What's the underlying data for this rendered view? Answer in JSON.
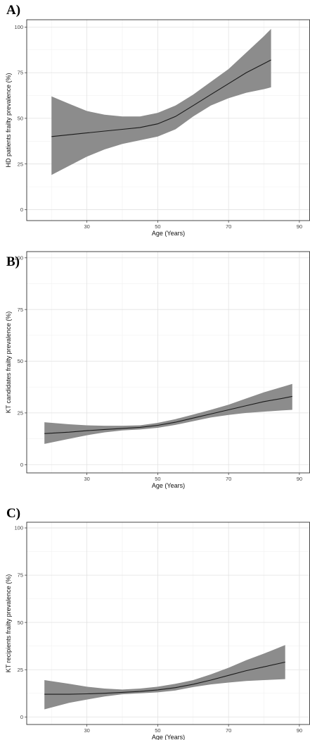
{
  "chart_data": [
    {
      "type": "line",
      "panel_label": "A)",
      "xlabel": "Age (Years)",
      "ylabel": "HD patients frailty prevalence (%)",
      "xlim": [
        13,
        93
      ],
      "ylim": [
        -6,
        104
      ],
      "x_ticks": [
        30,
        50,
        70,
        90
      ],
      "y_ticks": [
        0,
        25,
        50,
        75,
        100
      ],
      "grid": true,
      "series": [
        {
          "x": [
            20,
            25,
            30,
            35,
            40,
            45,
            50,
            55,
            60,
            65,
            70,
            75,
            80,
            82
          ],
          "y": [
            40,
            41,
            42,
            43,
            44,
            45,
            47,
            51,
            57,
            63,
            69,
            75,
            80,
            82
          ],
          "ci_lower": [
            19,
            24,
            29,
            33,
            36,
            38,
            40,
            44,
            51,
            57,
            61,
            64,
            66,
            67
          ],
          "ci_upper": [
            62,
            58,
            54,
            52,
            51,
            51,
            53,
            57,
            63,
            70,
            77,
            86,
            95,
            99
          ]
        }
      ]
    },
    {
      "type": "line",
      "panel_label": "B)",
      "xlabel": "Age (Years)",
      "ylabel": "KT candidates frailty prevalence (%)",
      "xlim": [
        13,
        93
      ],
      "ylim": [
        -4,
        103
      ],
      "x_ticks": [
        30,
        50,
        70,
        90
      ],
      "y_ticks": [
        0,
        25,
        50,
        75,
        100
      ],
      "grid": true,
      "series": [
        {
          "x": [
            18,
            25,
            30,
            35,
            40,
            45,
            50,
            55,
            60,
            65,
            70,
            75,
            80,
            85,
            88
          ],
          "y": [
            15,
            15.7,
            16.4,
            17,
            17.5,
            18,
            19,
            20.5,
            22.5,
            24.5,
            26.5,
            28.5,
            30.5,
            32,
            33
          ],
          "ci_lower": [
            10,
            12.5,
            14.2,
            15.6,
            16.5,
            17,
            17.8,
            19.2,
            21,
            22.8,
            24,
            25,
            25.6,
            26.2,
            26.5
          ],
          "ci_upper": [
            20.5,
            19.5,
            19,
            18.8,
            18.8,
            19,
            20.2,
            22,
            24.2,
            26.5,
            29,
            32,
            35,
            37.5,
            39
          ]
        }
      ]
    },
    {
      "type": "line",
      "panel_label": "C)",
      "xlabel": "Age (Years)",
      "ylabel": "KT recipients frailty prevalence (%)",
      "xlim": [
        13,
        93
      ],
      "ylim": [
        -4,
        103
      ],
      "x_ticks": [
        30,
        50,
        70,
        90
      ],
      "y_ticks": [
        0,
        25,
        50,
        75,
        100
      ],
      "grid": true,
      "series": [
        {
          "x": [
            18,
            25,
            30,
            35,
            40,
            45,
            50,
            55,
            60,
            65,
            70,
            75,
            80,
            86
          ],
          "y": [
            12,
            12,
            12.2,
            12.5,
            13,
            13.5,
            14.3,
            15.5,
            17.3,
            19.5,
            22,
            24.5,
            26.5,
            29
          ],
          "ci_lower": [
            4,
            7.5,
            9.2,
            10.8,
            12,
            12.5,
            13,
            14,
            15.8,
            17.2,
            18.2,
            19,
            19.5,
            20
          ],
          "ci_upper": [
            19.5,
            17.5,
            16,
            15,
            14.5,
            15,
            16,
            17.5,
            19.5,
            22.5,
            26,
            30,
            33.5,
            38
          ]
        }
      ]
    }
  ]
}
